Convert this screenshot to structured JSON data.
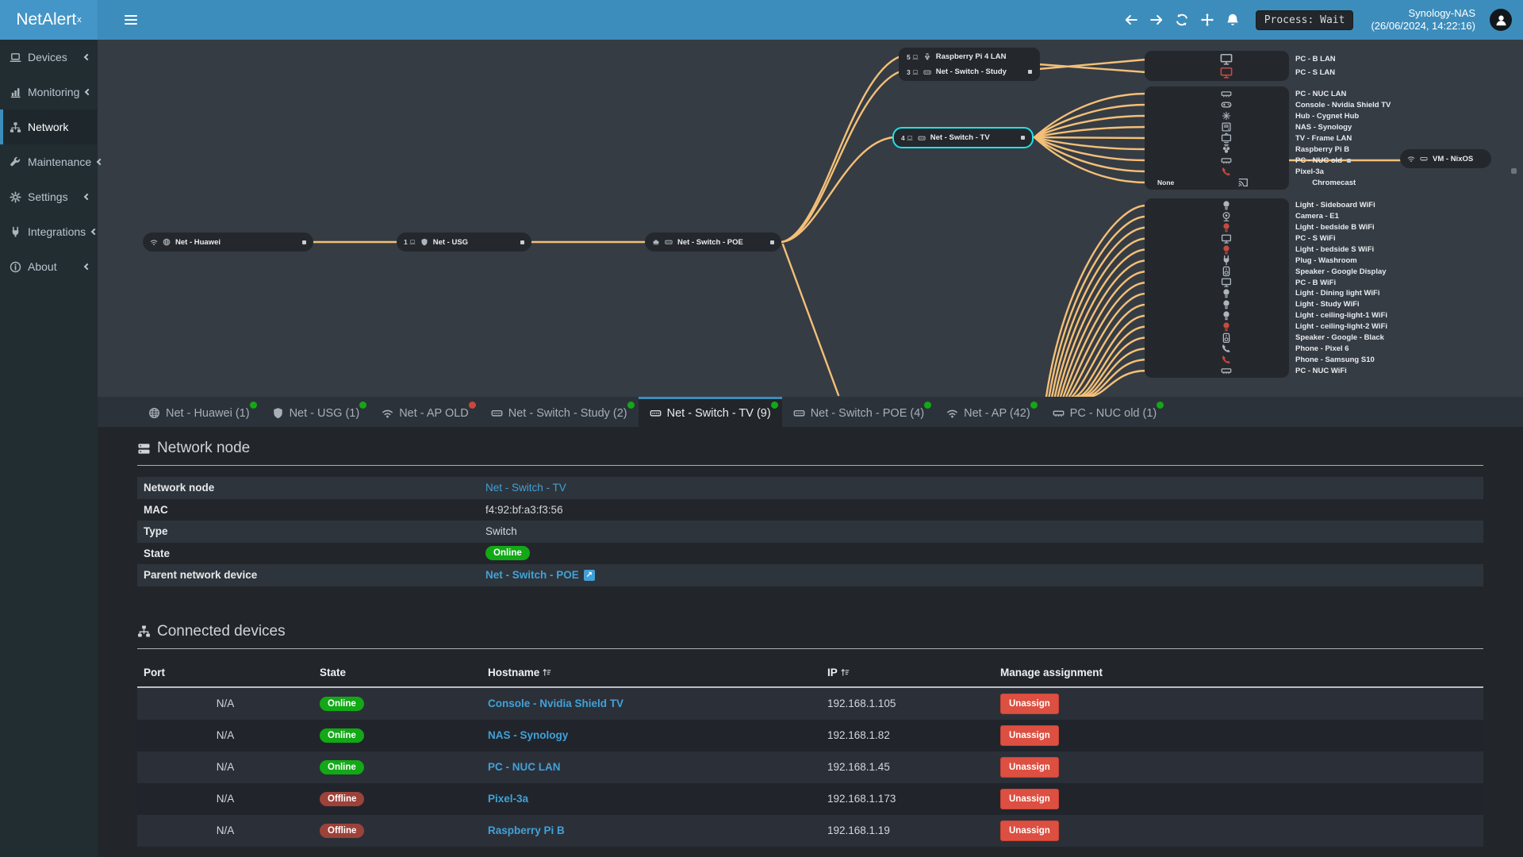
{
  "topbar": {
    "brand": "NetAlert",
    "brand_sup": "x",
    "process_badge": "Process: Wait",
    "host": "Synology-NAS",
    "timestamp": "(26/06/2024, 14:22:16)",
    "icons": [
      "menu-icon",
      "arrow-left-icon",
      "arrow-right-icon",
      "sync-icon",
      "move-icon",
      "bell-icon",
      "user-avatar-icon"
    ]
  },
  "sidebar": {
    "items": [
      {
        "icon": "laptop",
        "label": "Devices",
        "state": "",
        "chevron": "chevron-left-icon"
      },
      {
        "icon": "chart",
        "label": "Monitoring",
        "state": "",
        "chevron": "chevron-left-icon"
      },
      {
        "icon": "sitemap",
        "label": "Network",
        "state": "active",
        "chevron": ""
      },
      {
        "icon": "wrench",
        "label": "Maintenance",
        "state": "",
        "chevron": "chevron-left-icon"
      },
      {
        "icon": "gear",
        "label": "Settings",
        "state": "",
        "chevron": "chevron-left-icon"
      },
      {
        "icon": "plug",
        "label": "Integrations",
        "state": "",
        "chevron": "chevron-left-icon"
      },
      {
        "icon": "info",
        "label": "About",
        "state": "",
        "chevron": "chevron-left-icon"
      }
    ]
  },
  "diagram": {
    "line_color": "#f3c077",
    "selection_color": "#1ee3e8",
    "nodes": {
      "huawei": {
        "label": "Net - Huawei",
        "icons": [
          "wifi",
          "globe"
        ]
      },
      "usg": {
        "count": "1",
        "label": "Net - USG",
        "icons": [
          "shield"
        ]
      },
      "poe": {
        "label": "Net - Switch - POE",
        "icons": [
          "eth",
          "switch"
        ]
      },
      "tv": {
        "count": "4",
        "label": "Net - Switch - TV",
        "icons": [
          "switch"
        ],
        "selected": true
      },
      "rpi4": {
        "count": "5",
        "label": "Raspberry Pi 4 LAN",
        "icons": [
          "rpi"
        ]
      },
      "study": {
        "count": "3",
        "label": "Net - Switch - Study",
        "icons": [
          "switch"
        ]
      },
      "vm": {
        "label": "VM - NixOS",
        "icons": [
          "wifi",
          "nic"
        ]
      }
    },
    "lan_pcs": [
      {
        "conn": "wifi",
        "connClass": "",
        "conn_text": "",
        "dev": "monitor",
        "devClass": "",
        "label": "PC - B LAN",
        "port": ""
      },
      {
        "conn": "wifi",
        "connClass": "red",
        "conn_text": "",
        "dev": "monitor",
        "devClass": "red",
        "label": "PC - S LAN",
        "port": ""
      }
    ],
    "tv_devices": [
      {
        "conn": "wifi",
        "connClass": "",
        "conn_text": "",
        "dev": "nic",
        "devClass": "",
        "label": "PC - NUC LAN",
        "port": ""
      },
      {
        "conn": "wifi",
        "connClass": "",
        "conn_text": "",
        "dev": "gamepad",
        "devClass": "",
        "label": "Console - Nvidia Shield TV",
        "port": ""
      },
      {
        "conn": "eth",
        "connClass": "red",
        "conn_text": "",
        "dev": "hub",
        "devClass": "",
        "label": "Hub - Cygnet Hub",
        "port": ""
      },
      {
        "conn": "wifi",
        "connClass": "",
        "conn_text": "",
        "dev": "nas",
        "devClass": "",
        "label": "NAS - Synology",
        "port": ""
      },
      {
        "conn": "wifi",
        "connClass": "red",
        "conn_text": "",
        "dev": "tv",
        "devClass": "",
        "label": "TV - Frame LAN",
        "port": ""
      },
      {
        "conn": "wifi",
        "connClass": "red",
        "conn_text": "",
        "dev": "rpi",
        "devClass": "",
        "label": "Raspberry Pi B",
        "port": ""
      },
      {
        "conn": "eth",
        "connClass": "",
        "conn_text": "",
        "dev": "nic",
        "devClass": "",
        "label": "PC - NUC old",
        "port": "has-port"
      },
      {
        "conn": "wifi",
        "connClass": "red",
        "conn_text": "",
        "dev": "phone",
        "devClass": "red",
        "label": "Pixel-3a",
        "port": ""
      },
      {
        "conn": "",
        "connClass": "",
        "conn_text": "None",
        "dev": "cast",
        "devClass": "",
        "label": "Chromecast",
        "port": ""
      }
    ],
    "wifi_devices": [
      {
        "conn": "wifi",
        "connClass": "",
        "conn_text": "",
        "dev": "bulb",
        "devClass": "",
        "label": "Light - Sideboard WiFi",
        "port": ""
      },
      {
        "conn": "wifi",
        "connClass": "red",
        "conn_text": "",
        "dev": "camera",
        "devClass": "",
        "label": "Camera - E1",
        "port": ""
      },
      {
        "conn": "wifi",
        "connClass": "red",
        "conn_text": "",
        "dev": "bulb",
        "devClass": "red",
        "label": "Light - bedside B WiFi",
        "port": ""
      },
      {
        "conn": "wifi",
        "connClass": "",
        "conn_text": "",
        "dev": "monitor",
        "devClass": "",
        "label": "PC - S WiFi",
        "port": ""
      },
      {
        "conn": "wifi",
        "connClass": "red",
        "conn_text": "",
        "dev": "bulb",
        "devClass": "red",
        "label": "Light - bedside S WiFi",
        "port": ""
      },
      {
        "conn": "wifi",
        "connClass": "",
        "conn_text": "",
        "dev": "powerplug",
        "devClass": "",
        "label": "Plug - Washroom",
        "port": ""
      },
      {
        "conn": "wifi",
        "connClass": "",
        "conn_text": "",
        "dev": "speaker",
        "devClass": "",
        "label": "Speaker - Google Display",
        "port": ""
      },
      {
        "conn": "wifi",
        "connClass": "",
        "conn_text": "",
        "dev": "monitor",
        "devClass": "",
        "label": "PC - B WiFi",
        "port": ""
      },
      {
        "conn": "wifi",
        "connClass": "",
        "conn_text": "",
        "dev": "bulb",
        "devClass": "",
        "label": "Light - Dining light WiFi",
        "port": ""
      },
      {
        "conn": "wifi",
        "connClass": "",
        "conn_text": "",
        "dev": "bulb",
        "devClass": "",
        "label": "Light - Study WiFi",
        "port": ""
      },
      {
        "conn": "wifi",
        "connClass": "",
        "conn_text": "",
        "dev": "bulb",
        "devClass": "",
        "label": "Light - ceiling-light-1 WiFi",
        "port": ""
      },
      {
        "conn": "wifi",
        "connClass": "red",
        "conn_text": "",
        "dev": "bulb",
        "devClass": "red",
        "label": "Light - ceiling-light-2 WiFi",
        "port": ""
      },
      {
        "conn": "wifi",
        "connClass": "",
        "conn_text": "",
        "dev": "speaker",
        "devClass": "",
        "label": "Speaker - Google - Black",
        "port": ""
      },
      {
        "conn": "wifi",
        "connClass": "",
        "conn_text": "",
        "dev": "phone",
        "devClass": "",
        "label": "Phone - Pixel 6",
        "port": ""
      },
      {
        "conn": "wifi",
        "connClass": "red",
        "conn_text": "",
        "dev": "phone",
        "devClass": "red",
        "label": "Phone - Samsung S10",
        "port": ""
      },
      {
        "conn": "wifi",
        "connClass": "",
        "conn_text": "",
        "dev": "nic",
        "devClass": "",
        "label": "PC - NUC WiFi",
        "port": ""
      }
    ]
  },
  "tabs": [
    {
      "icon": "globe",
      "label": "Net - Huawei (1)",
      "dot": "dot-green",
      "state": ""
    },
    {
      "icon": "shield",
      "label": "Net - USG (1)",
      "dot": "dot-green",
      "state": ""
    },
    {
      "icon": "wifi",
      "label": "Net - AP OLD",
      "dot": "dot-red",
      "state": ""
    },
    {
      "icon": "switch",
      "label": "Net - Switch - Study (2)",
      "dot": "dot-green",
      "state": ""
    },
    {
      "icon": "switch",
      "label": "Net - Switch - TV (9)",
      "dot": "dot-green",
      "state": "active"
    },
    {
      "icon": "switch",
      "label": "Net - Switch - POE (4)",
      "dot": "dot-green",
      "state": ""
    },
    {
      "icon": "wifi",
      "label": "Net - AP (42)",
      "dot": "dot-green",
      "state": ""
    },
    {
      "icon": "nic",
      "label": "PC - NUC old (1)",
      "dot": "dot-green",
      "state": ""
    }
  ],
  "node_panel": {
    "title": "Network node",
    "rows": [
      {
        "label": "Network node",
        "value": "Net - Switch - TV"
      },
      {
        "label": "MAC",
        "value": "f4:92:bf:a3:f3:56"
      },
      {
        "label": "Type",
        "value": "Switch"
      },
      {
        "label": "State",
        "value": "Online"
      },
      {
        "label": "Parent network device",
        "value": "Net - Switch - POE"
      }
    ]
  },
  "devices_panel": {
    "title": "Connected devices",
    "columns": [
      "Port",
      "State",
      "Hostname",
      "IP",
      "Manage assignment"
    ],
    "rows": [
      {
        "port": "N/A",
        "state": "Online",
        "stateClass": "online",
        "hostname": "Console - Nvidia Shield TV",
        "ip": "192.168.1.105",
        "action": "Unassign"
      },
      {
        "port": "N/A",
        "state": "Online",
        "stateClass": "online",
        "hostname": "NAS - Synology",
        "ip": "192.168.1.82",
        "action": "Unassign"
      },
      {
        "port": "N/A",
        "state": "Online",
        "stateClass": "online",
        "hostname": "PC - NUC LAN",
        "ip": "192.168.1.45",
        "action": "Unassign"
      },
      {
        "port": "N/A",
        "state": "Offline",
        "stateClass": "offline",
        "hostname": "Pixel-3a",
        "ip": "192.168.1.173",
        "action": "Unassign"
      },
      {
        "port": "N/A",
        "state": "Offline",
        "stateClass": "offline",
        "hostname": "Raspberry Pi B",
        "ip": "192.168.1.19",
        "action": "Unassign"
      }
    ]
  }
}
